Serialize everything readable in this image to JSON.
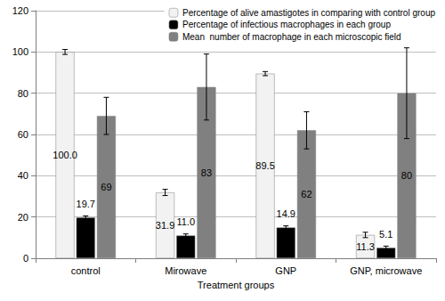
{
  "chart_data": {
    "type": "bar",
    "x_label": "Treatment groups",
    "categories": [
      "control",
      "Mirowave",
      "GNP",
      "GNP, microwave"
    ],
    "series": [
      {
        "name": "Percentage of alive amastigotes in comparing with control group",
        "color": "#f2f2f2",
        "values": [
          100.0,
          31.9,
          89.5,
          11.3
        ],
        "value_labels": [
          "100.0",
          "31.9",
          "89.5",
          "11.3"
        ],
        "errors": [
          1.2,
          1.5,
          1.0,
          1.3
        ]
      },
      {
        "name": "Percentage of infectious macrophages in each group",
        "color": "#000000",
        "values": [
          19.7,
          11.0,
          14.9,
          5.1
        ],
        "value_labels": [
          "19.7",
          "11.0",
          "14.9",
          "5.1"
        ],
        "errors": [
          0.8,
          0.8,
          0.8,
          0.8
        ]
      },
      {
        "name": "Mean  number of macrophage in each microscopic field",
        "color": "#808080",
        "values": [
          69,
          83,
          62,
          80
        ],
        "errors": [
          9,
          16,
          9,
          22
        ]
      }
    ],
    "ylim": [
      0,
      120
    ],
    "yticks": [
      0,
      20,
      40,
      60,
      80,
      100,
      120
    ],
    "grid": true,
    "legend": "top-right",
    "data_labels": true
  }
}
